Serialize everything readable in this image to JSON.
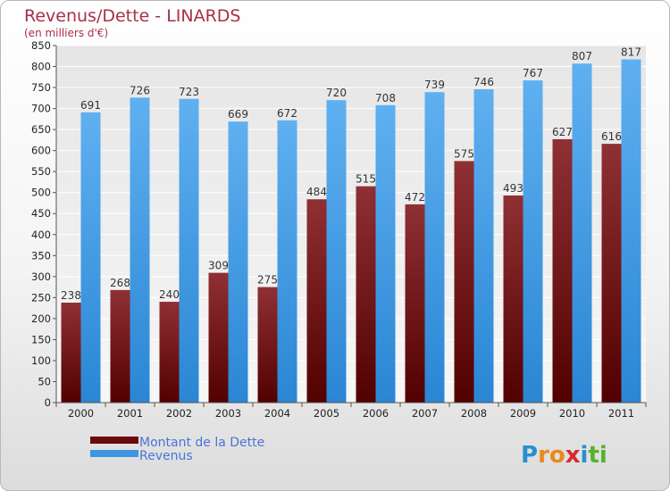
{
  "chart_data": {
    "type": "bar",
    "title": "Revenus/Dette - LINARDS",
    "subtitle": "(en milliers d'€)",
    "categories": [
      "2000",
      "2001",
      "2002",
      "2003",
      "2004",
      "2005",
      "2006",
      "2007",
      "2008",
      "2009",
      "2010",
      "2011"
    ],
    "series": [
      {
        "name": "Montant de la Dette",
        "color": "#7a1818",
        "values": [
          238,
          268,
          240,
          309,
          275,
          484,
          515,
          472,
          575,
          493,
          627,
          616
        ]
      },
      {
        "name": "Revenus",
        "color": "#3f95df",
        "values": [
          691,
          726,
          723,
          669,
          672,
          720,
          708,
          739,
          746,
          767,
          807,
          817
        ]
      }
    ],
    "ylim": [
      0,
      850
    ],
    "ytick_step": 50,
    "grid": true,
    "legend_placement": "bottom-left"
  },
  "logo": {
    "text": "Proxiti",
    "letters": [
      "P",
      "r",
      "o",
      "x",
      "i",
      "t",
      "i"
    ],
    "colors": [
      "#2a8fd0",
      "#e88a1a",
      "#e88a1a",
      "#d82828",
      "#2a8fd0",
      "#58b030",
      "#58b030"
    ]
  }
}
